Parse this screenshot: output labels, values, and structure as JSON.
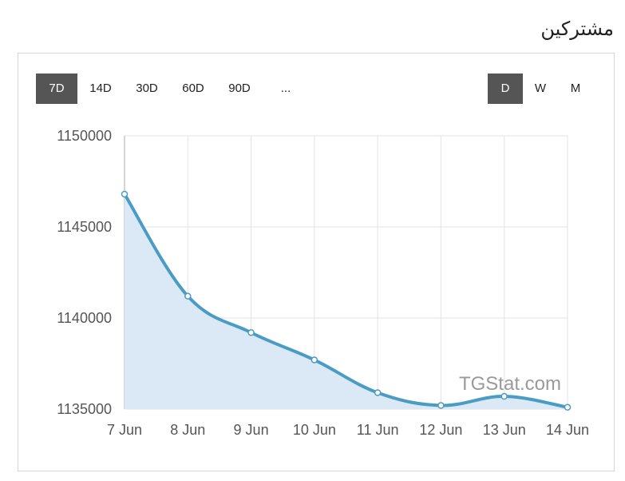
{
  "header": {
    "title": "مشترکین"
  },
  "controls": {
    "ranges": [
      {
        "label": "7D",
        "active": true
      },
      {
        "label": "14D",
        "active": false
      },
      {
        "label": "30D",
        "active": false
      },
      {
        "label": "60D",
        "active": false
      },
      {
        "label": "90D",
        "active": false
      },
      {
        "label": "...",
        "active": false
      }
    ],
    "granularity": [
      {
        "label": "D",
        "active": true
      },
      {
        "label": "W",
        "active": false
      },
      {
        "label": "M",
        "active": false
      }
    ]
  },
  "watermark": "TGStat.com",
  "chart_data": {
    "type": "area",
    "categories": [
      "7 Jun",
      "8 Jun",
      "9 Jun",
      "10 Jun",
      "11 Jun",
      "12 Jun",
      "13 Jun",
      "14 Jun"
    ],
    "series": [
      {
        "values": [
          1146800,
          1141200,
          1139200,
          1137700,
          1135900,
          1135200,
          1135700,
          1135100
        ]
      }
    ],
    "yticks": [
      1135000,
      1140000,
      1145000,
      1150000
    ],
    "ylim": [
      1135000,
      1150000
    ],
    "grid": true,
    "colors": {
      "line": "#4a9cc4",
      "fill": "#dbe9f6",
      "grid": "#e3e3e3"
    }
  }
}
